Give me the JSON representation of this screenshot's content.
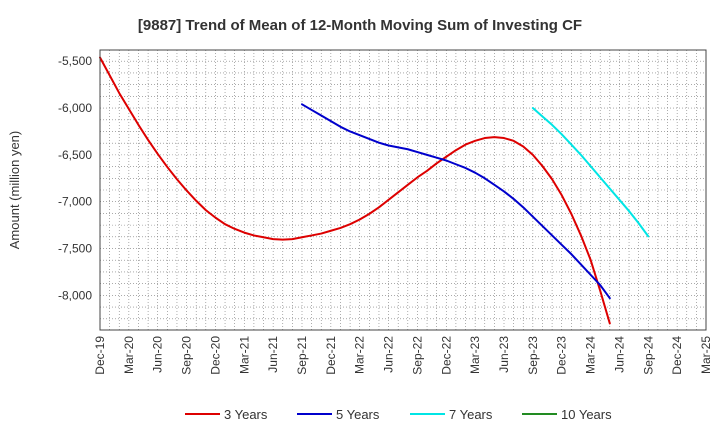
{
  "chart_data": {
    "type": "line",
    "title": "[9887]  Trend of Mean of 12-Month Moving Sum of Investing CF",
    "xlabel": "",
    "ylabel": "Amount (million yen)",
    "ylim": [
      -8370,
      -5380
    ],
    "yticks": [
      -5500,
      -6000,
      -6500,
      -7000,
      -7500,
      -8000
    ],
    "ytick_labels": [
      "-5,500",
      "-6,000",
      "-6,500",
      "-7,000",
      "-7,500",
      "-8,000"
    ],
    "x_labels": [
      "Dec-19",
      "Mar-20",
      "Jun-20",
      "Sep-20",
      "Dec-20",
      "Mar-21",
      "Jun-21",
      "Sep-21",
      "Dec-21",
      "Mar-22",
      "Jun-22",
      "Sep-22",
      "Dec-22",
      "Mar-23",
      "Jun-23",
      "Sep-23",
      "Dec-23",
      "Mar-24",
      "Jun-24",
      "Sep-24",
      "Dec-24",
      "Mar-25"
    ],
    "x_months_total": 63,
    "grid": true,
    "legend_position": "bottom",
    "series": [
      {
        "name": "3 Years",
        "color": "#dd0000",
        "start_month": 0,
        "values": [
          -5460,
          -5650,
          -5840,
          -6010,
          -6180,
          -6340,
          -6490,
          -6630,
          -6760,
          -6880,
          -6990,
          -7090,
          -7170,
          -7240,
          -7290,
          -7330,
          -7360,
          -7380,
          -7400,
          -7405,
          -7400,
          -7380,
          -7360,
          -7340,
          -7310,
          -7280,
          -7240,
          -7190,
          -7130,
          -7060,
          -6980,
          -6900,
          -6820,
          -6740,
          -6670,
          -6590,
          -6520,
          -6450,
          -6390,
          -6350,
          -6320,
          -6310,
          -6320,
          -6350,
          -6410,
          -6500,
          -6620,
          -6760,
          -6930,
          -7130,
          -7360,
          -7620,
          -7950,
          -8300
        ]
      },
      {
        "name": "5 Years",
        "color": "#0000cc",
        "start_month": 21,
        "values": [
          -5960,
          -6020,
          -6080,
          -6140,
          -6200,
          -6250,
          -6290,
          -6330,
          -6370,
          -6400,
          -6420,
          -6440,
          -6470,
          -6500,
          -6530,
          -6560,
          -6600,
          -6640,
          -6690,
          -6750,
          -6820,
          -6890,
          -6970,
          -7060,
          -7160,
          -7260,
          -7360,
          -7460,
          -7560,
          -7670,
          -7780,
          -7890,
          -8030
        ]
      },
      {
        "name": "7 Years",
        "color": "#00e5e5",
        "start_month": 45,
        "values": [
          -6000,
          -6090,
          -6180,
          -6280,
          -6390,
          -6500,
          -6620,
          -6740,
          -6860,
          -6980,
          -7100,
          -7230,
          -7370
        ]
      },
      {
        "name": "10 Years",
        "color": "#228B22",
        "start_month": 0,
        "values": []
      }
    ]
  }
}
